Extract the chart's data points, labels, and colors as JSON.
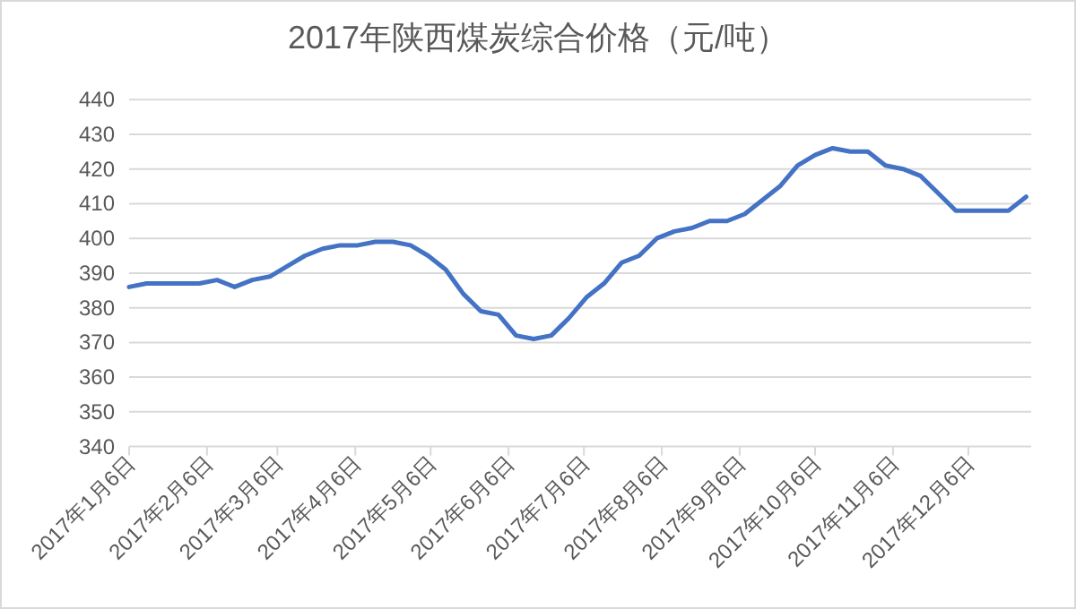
{
  "chart_data": {
    "type": "line",
    "title": "2017年陕西煤炭综合价格（元/吨）",
    "x": [
      "2017-01-06",
      "2017-01-13",
      "2017-01-20",
      "2017-01-27",
      "2017-02-03",
      "2017-02-10",
      "2017-02-17",
      "2017-02-24",
      "2017-03-03",
      "2017-03-10",
      "2017-03-17",
      "2017-03-24",
      "2017-03-31",
      "2017-04-07",
      "2017-04-14",
      "2017-04-21",
      "2017-04-28",
      "2017-05-05",
      "2017-05-12",
      "2017-05-19",
      "2017-05-26",
      "2017-06-02",
      "2017-06-09",
      "2017-06-16",
      "2017-06-23",
      "2017-06-30",
      "2017-07-07",
      "2017-07-14",
      "2017-07-21",
      "2017-07-28",
      "2017-08-04",
      "2017-08-11",
      "2017-08-18",
      "2017-08-25",
      "2017-09-01",
      "2017-09-08",
      "2017-09-15",
      "2017-09-22",
      "2017-09-29",
      "2017-10-06",
      "2017-10-13",
      "2017-10-20",
      "2017-10-27",
      "2017-11-03",
      "2017-11-10",
      "2017-11-17",
      "2017-11-24",
      "2017-12-01",
      "2017-12-08",
      "2017-12-15",
      "2017-12-22",
      "2017-12-29"
    ],
    "series": [
      {
        "color": "#4472c4",
        "values": [
          386,
          387,
          387,
          387,
          387,
          388,
          386,
          388,
          389,
          392,
          395,
          397,
          398,
          398,
          399,
          399,
          398,
          395,
          391,
          384,
          379,
          378,
          372,
          371,
          372,
          377,
          383,
          387,
          393,
          395,
          400,
          402,
          403,
          405,
          405,
          407,
          411,
          415,
          421,
          424,
          426,
          425,
          425,
          421,
          420,
          418,
          413,
          408,
          408,
          408,
          408,
          412
        ]
      }
    ],
    "xlim": [
      "2017-01-06",
      "2017-12-31"
    ],
    "xticks": [
      {
        "value": "2017-01-06",
        "label": "2017年1月6日"
      },
      {
        "value": "2017-02-06",
        "label": "2017年2月6日"
      },
      {
        "value": "2017-03-06",
        "label": "2017年3月6日"
      },
      {
        "value": "2017-04-06",
        "label": "2017年4月6日"
      },
      {
        "value": "2017-05-06",
        "label": "2017年5月6日"
      },
      {
        "value": "2017-06-06",
        "label": "2017年6月6日"
      },
      {
        "value": "2017-07-06",
        "label": "2017年7月6日"
      },
      {
        "value": "2017-08-06",
        "label": "2017年8月6日"
      },
      {
        "value": "2017-09-06",
        "label": "2017年9月6日"
      },
      {
        "value": "2017-10-06",
        "label": "2017年10月6日"
      },
      {
        "value": "2017-11-06",
        "label": "2017年11月6日"
      },
      {
        "value": "2017-12-06",
        "label": "2017年12月6日"
      }
    ],
    "ylim": [
      340,
      440
    ],
    "yticks": [
      340,
      350,
      360,
      370,
      380,
      390,
      400,
      410,
      420,
      430,
      440
    ],
    "grid": "y",
    "marker": "none",
    "line_style": "solid"
  }
}
